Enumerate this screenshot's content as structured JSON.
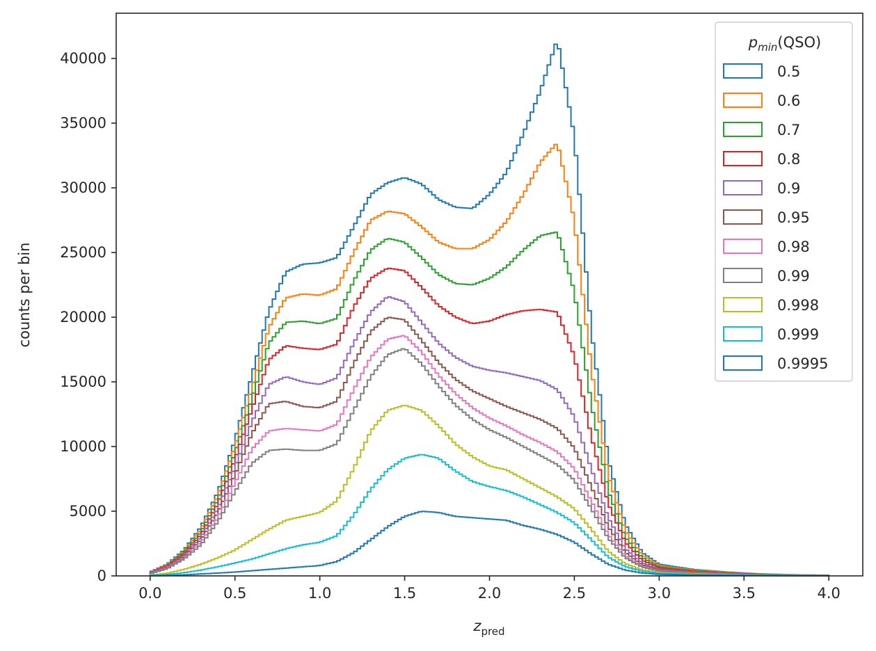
{
  "chart_data": {
    "type": "histogram-step",
    "xlabel": "z",
    "xlabel_sub": "pred",
    "ylabel": "counts per bin",
    "xlim": [
      -0.2,
      4.2
    ],
    "ylim": [
      0,
      43500
    ],
    "xticks": [
      0.0,
      0.5,
      1.0,
      1.5,
      2.0,
      2.5,
      3.0,
      3.5,
      4.0
    ],
    "xtick_labels": [
      "0.0",
      "0.5",
      "1.0",
      "1.5",
      "2.0",
      "2.5",
      "3.0",
      "3.5",
      "4.0"
    ],
    "yticks": [
      0,
      5000,
      10000,
      15000,
      20000,
      25000,
      30000,
      35000,
      40000
    ],
    "ytick_labels": [
      "0",
      "5000",
      "10000",
      "15000",
      "20000",
      "25000",
      "30000",
      "35000",
      "40000"
    ],
    "bin_width": 0.02,
    "legend": {
      "title_main": "p",
      "title_sub": "min",
      "title_suffix": "(QSO)",
      "placement": "upper right"
    },
    "x": [
      0.0,
      0.1,
      0.2,
      0.3,
      0.4,
      0.5,
      0.6,
      0.7,
      0.8,
      0.9,
      1.0,
      1.1,
      1.2,
      1.3,
      1.4,
      1.5,
      1.6,
      1.7,
      1.8,
      1.9,
      2.0,
      2.1,
      2.2,
      2.3,
      2.4,
      2.5,
      2.6,
      2.7,
      2.8,
      2.9,
      3.0,
      3.2,
      3.4,
      3.6,
      3.8,
      4.0
    ],
    "series": [
      {
        "name": "0.5",
        "color": "#1f77b4",
        "values": [
          300,
          900,
          2000,
          3800,
          6500,
          10500,
          15500,
          20500,
          23500,
          24100,
          24200,
          24600,
          27000,
          29500,
          30400,
          30800,
          30300,
          29100,
          28500,
          28400,
          29500,
          31200,
          34200,
          37500,
          41500,
          34000,
          19000,
          9000,
          4000,
          1800,
          900,
          500,
          300,
          150,
          80,
          50
        ]
      },
      {
        "name": "0.6",
        "color": "#ff7f0e",
        "values": [
          280,
          850,
          1900,
          3600,
          6200,
          10000,
          14500,
          19200,
          21500,
          21800,
          21700,
          22200,
          25000,
          27500,
          28200,
          28000,
          27000,
          25800,
          25300,
          25300,
          26000,
          27400,
          29500,
          32000,
          33500,
          27500,
          16000,
          7800,
          3500,
          1600,
          800,
          450,
          280,
          140,
          70,
          45
        ]
      },
      {
        "name": "0.7",
        "color": "#2ca02c",
        "values": [
          260,
          800,
          1800,
          3400,
          5900,
          9500,
          13700,
          18000,
          19600,
          19700,
          19500,
          19900,
          22800,
          25200,
          26100,
          25800,
          24600,
          23300,
          22600,
          22500,
          23000,
          23900,
          25200,
          26300,
          26600,
          22000,
          13300,
          6600,
          3000,
          1400,
          700,
          400,
          250,
          130,
          65,
          40
        ]
      },
      {
        "name": "0.8",
        "color": "#d62728",
        "values": [
          240,
          750,
          1700,
          3200,
          5600,
          9000,
          12900,
          16700,
          17800,
          17600,
          17500,
          17900,
          20800,
          23000,
          23800,
          23600,
          22300,
          20900,
          20000,
          19500,
          19700,
          20200,
          20500,
          20600,
          20400,
          17000,
          10800,
          5600,
          2600,
          1200,
          620,
          360,
          220,
          115,
          60,
          35
        ]
      },
      {
        "name": "0.9",
        "color": "#9467bd",
        "values": [
          220,
          700,
          1600,
          3000,
          5200,
          8400,
          11900,
          14800,
          15400,
          15000,
          14800,
          15300,
          18000,
          20400,
          21600,
          21200,
          19600,
          18000,
          16900,
          16200,
          15900,
          15700,
          15400,
          15100,
          14400,
          12300,
          8300,
          4500,
          2100,
          1000,
          520,
          300,
          190,
          100,
          50,
          30
        ]
      },
      {
        "name": "0.95",
        "color": "#8c564b",
        "values": [
          200,
          650,
          1500,
          2800,
          4900,
          7800,
          11000,
          13300,
          13500,
          13100,
          13000,
          13500,
          16400,
          18900,
          20000,
          19800,
          18200,
          16500,
          15200,
          14300,
          13700,
          13100,
          12600,
          12100,
          11400,
          9900,
          6900,
          3800,
          1800,
          850,
          450,
          260,
          165,
          90,
          45,
          28
        ]
      },
      {
        "name": "0.98",
        "color": "#e377c2",
        "values": [
          180,
          600,
          1400,
          2600,
          4500,
          7200,
          9800,
          11200,
          11400,
          11300,
          11200,
          11700,
          14400,
          16900,
          18300,
          18600,
          17300,
          15500,
          14100,
          13000,
          12200,
          11600,
          10900,
          10300,
          9600,
          8300,
          5800,
          3200,
          1550,
          740,
          400,
          230,
          150,
          80,
          40,
          25
        ]
      },
      {
        "name": "0.99",
        "color": "#7f7f7f",
        "values": [
          160,
          550,
          1300,
          2400,
          4200,
          6500,
          8700,
          9700,
          9800,
          9700,
          9700,
          10200,
          12800,
          15400,
          17100,
          17600,
          16400,
          14700,
          13200,
          12100,
          11300,
          10700,
          10000,
          9300,
          8600,
          7400,
          5200,
          2900,
          1400,
          680,
          370,
          210,
          140,
          75,
          38,
          22
        ]
      },
      {
        "name": "0.998",
        "color": "#bcbd22",
        "values": [
          60,
          200,
          500,
          900,
          1400,
          2000,
          2800,
          3600,
          4300,
          4600,
          4900,
          5800,
          8300,
          11200,
          12800,
          13200,
          12800,
          11600,
          10200,
          9200,
          8500,
          8200,
          7500,
          6800,
          6100,
          5200,
          3600,
          1900,
          950,
          470,
          260,
          150,
          100,
          55,
          28,
          15
        ]
      },
      {
        "name": "0.999",
        "color": "#17becf",
        "values": [
          30,
          100,
          250,
          450,
          700,
          1000,
          1300,
          1700,
          2100,
          2400,
          2600,
          3100,
          4700,
          6700,
          8200,
          9100,
          9400,
          9100,
          8100,
          7300,
          6900,
          6600,
          6100,
          5500,
          4900,
          4100,
          2800,
          1450,
          720,
          360,
          200,
          110,
          75,
          40,
          20,
          10
        ]
      },
      {
        "name": "0.9995",
        "color": "#1f77b4",
        "values": [
          10,
          30,
          80,
          150,
          220,
          300,
          400,
          500,
          600,
          700,
          800,
          1100,
          1800,
          2800,
          3800,
          4600,
          5000,
          4900,
          4600,
          4500,
          4400,
          4300,
          3900,
          3600,
          3200,
          2600,
          1700,
          900,
          450,
          220,
          120,
          70,
          45,
          25,
          12,
          6
        ]
      }
    ]
  }
}
